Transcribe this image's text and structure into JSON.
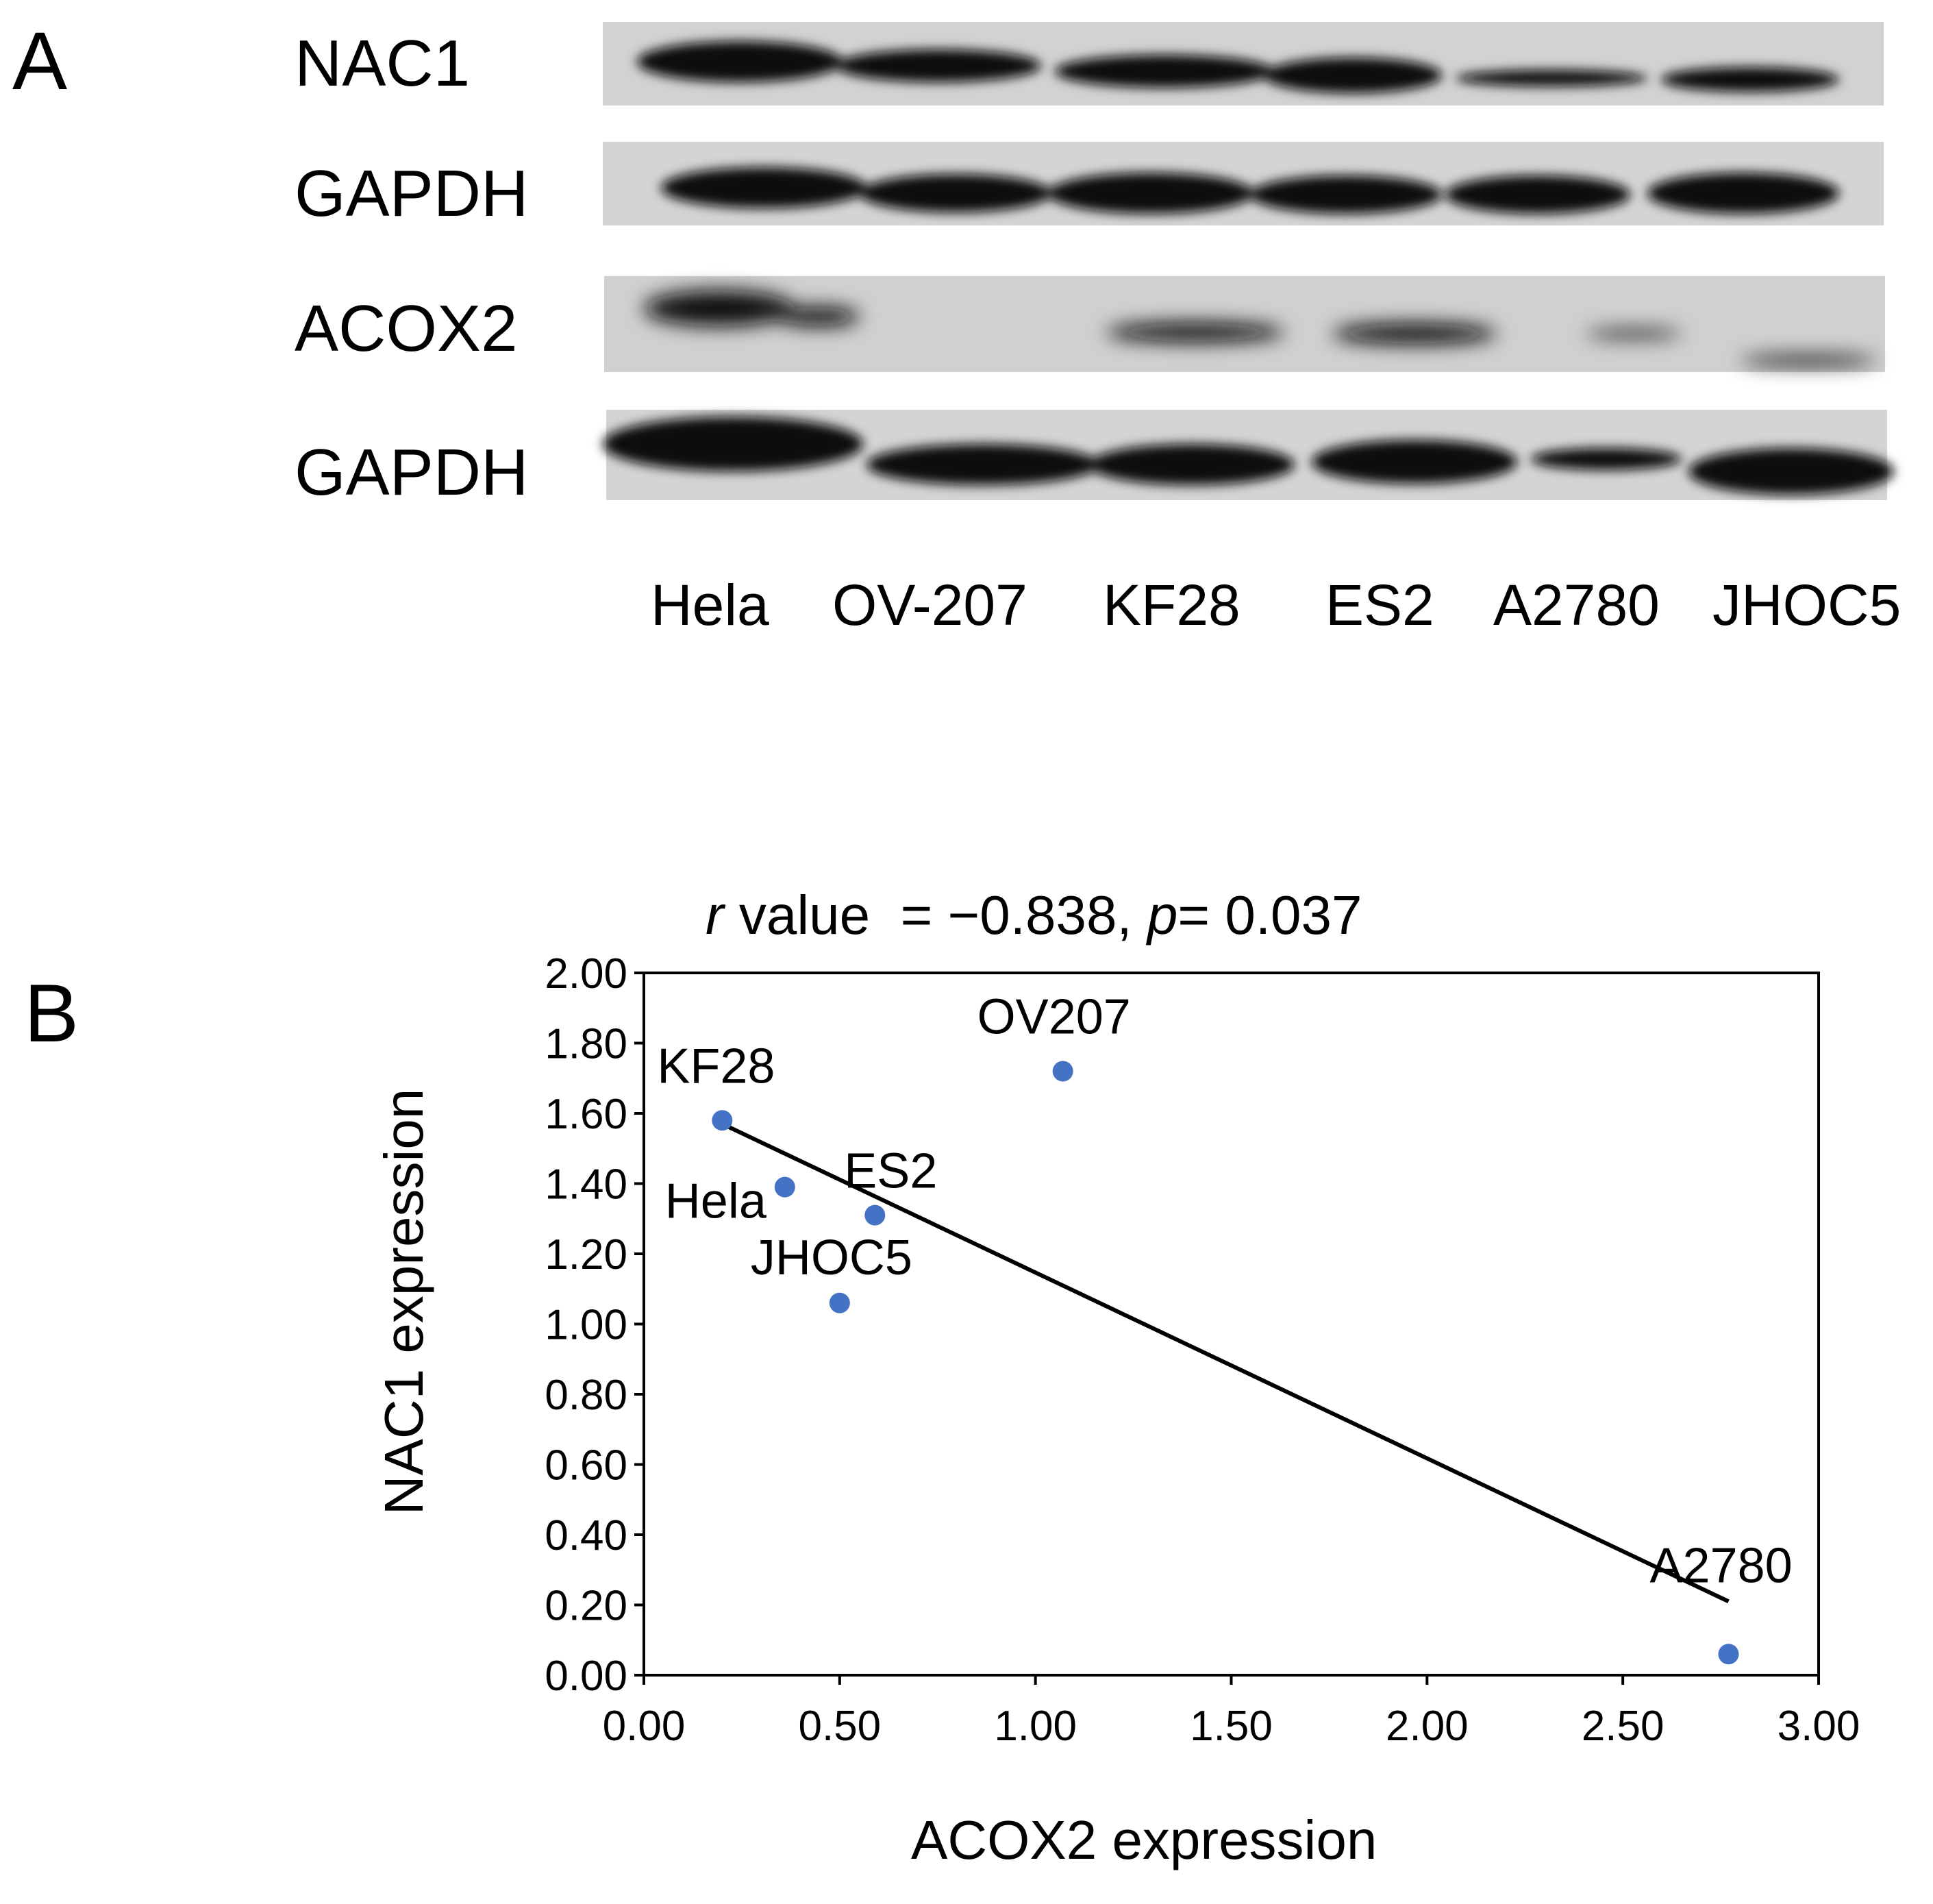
{
  "panel_a": {
    "letter": "A",
    "rows": [
      {
        "label": "NAC1"
      },
      {
        "label": "GAPDH"
      },
      {
        "label": "ACOX2"
      },
      {
        "label": "GAPDH"
      }
    ],
    "lanes": [
      "Hela",
      "OV-207",
      "KF28",
      "ES2",
      "A2780",
      "JHOC5"
    ]
  },
  "panel_b": {
    "letter": "B",
    "title_r": "r",
    "title_mid": " value  = −0.838, ",
    "title_p": "p",
    "title_end": "= 0.037"
  },
  "chart_data": {
    "type": "scatter",
    "title": "r value = −0.838, p= 0.037",
    "xlabel": "ACOX2 expression",
    "ylabel": "NAC1 expression",
    "xlim": [
      0,
      3
    ],
    "ylim": [
      0,
      2
    ],
    "x_ticks": [
      "0.00",
      "0.50",
      "1.00",
      "1.50",
      "2.00",
      "2.50",
      "3.00"
    ],
    "y_ticks": [
      "0.00",
      "0.20",
      "0.40",
      "0.60",
      "0.80",
      "1.00",
      "1.20",
      "1.40",
      "1.60",
      "1.80",
      "2.00"
    ],
    "points": [
      {
        "label": "KF28",
        "x": 0.2,
        "y": 1.58
      },
      {
        "label": "Hela",
        "x": 0.36,
        "y": 1.39
      },
      {
        "label": "ES2",
        "x": 0.59,
        "y": 1.31
      },
      {
        "label": "JHOC5",
        "x": 0.5,
        "y": 1.06
      },
      {
        "label": "OV207",
        "x": 1.07,
        "y": 1.72
      },
      {
        "label": "A2780",
        "x": 2.77,
        "y": 0.06
      }
    ],
    "trendline": {
      "x": [
        0.2,
        2.77
      ],
      "y": [
        1.57,
        0.21
      ]
    },
    "marker_color": "#4472c4",
    "line_color": "#000000",
    "grid": false,
    "legend": "none"
  }
}
